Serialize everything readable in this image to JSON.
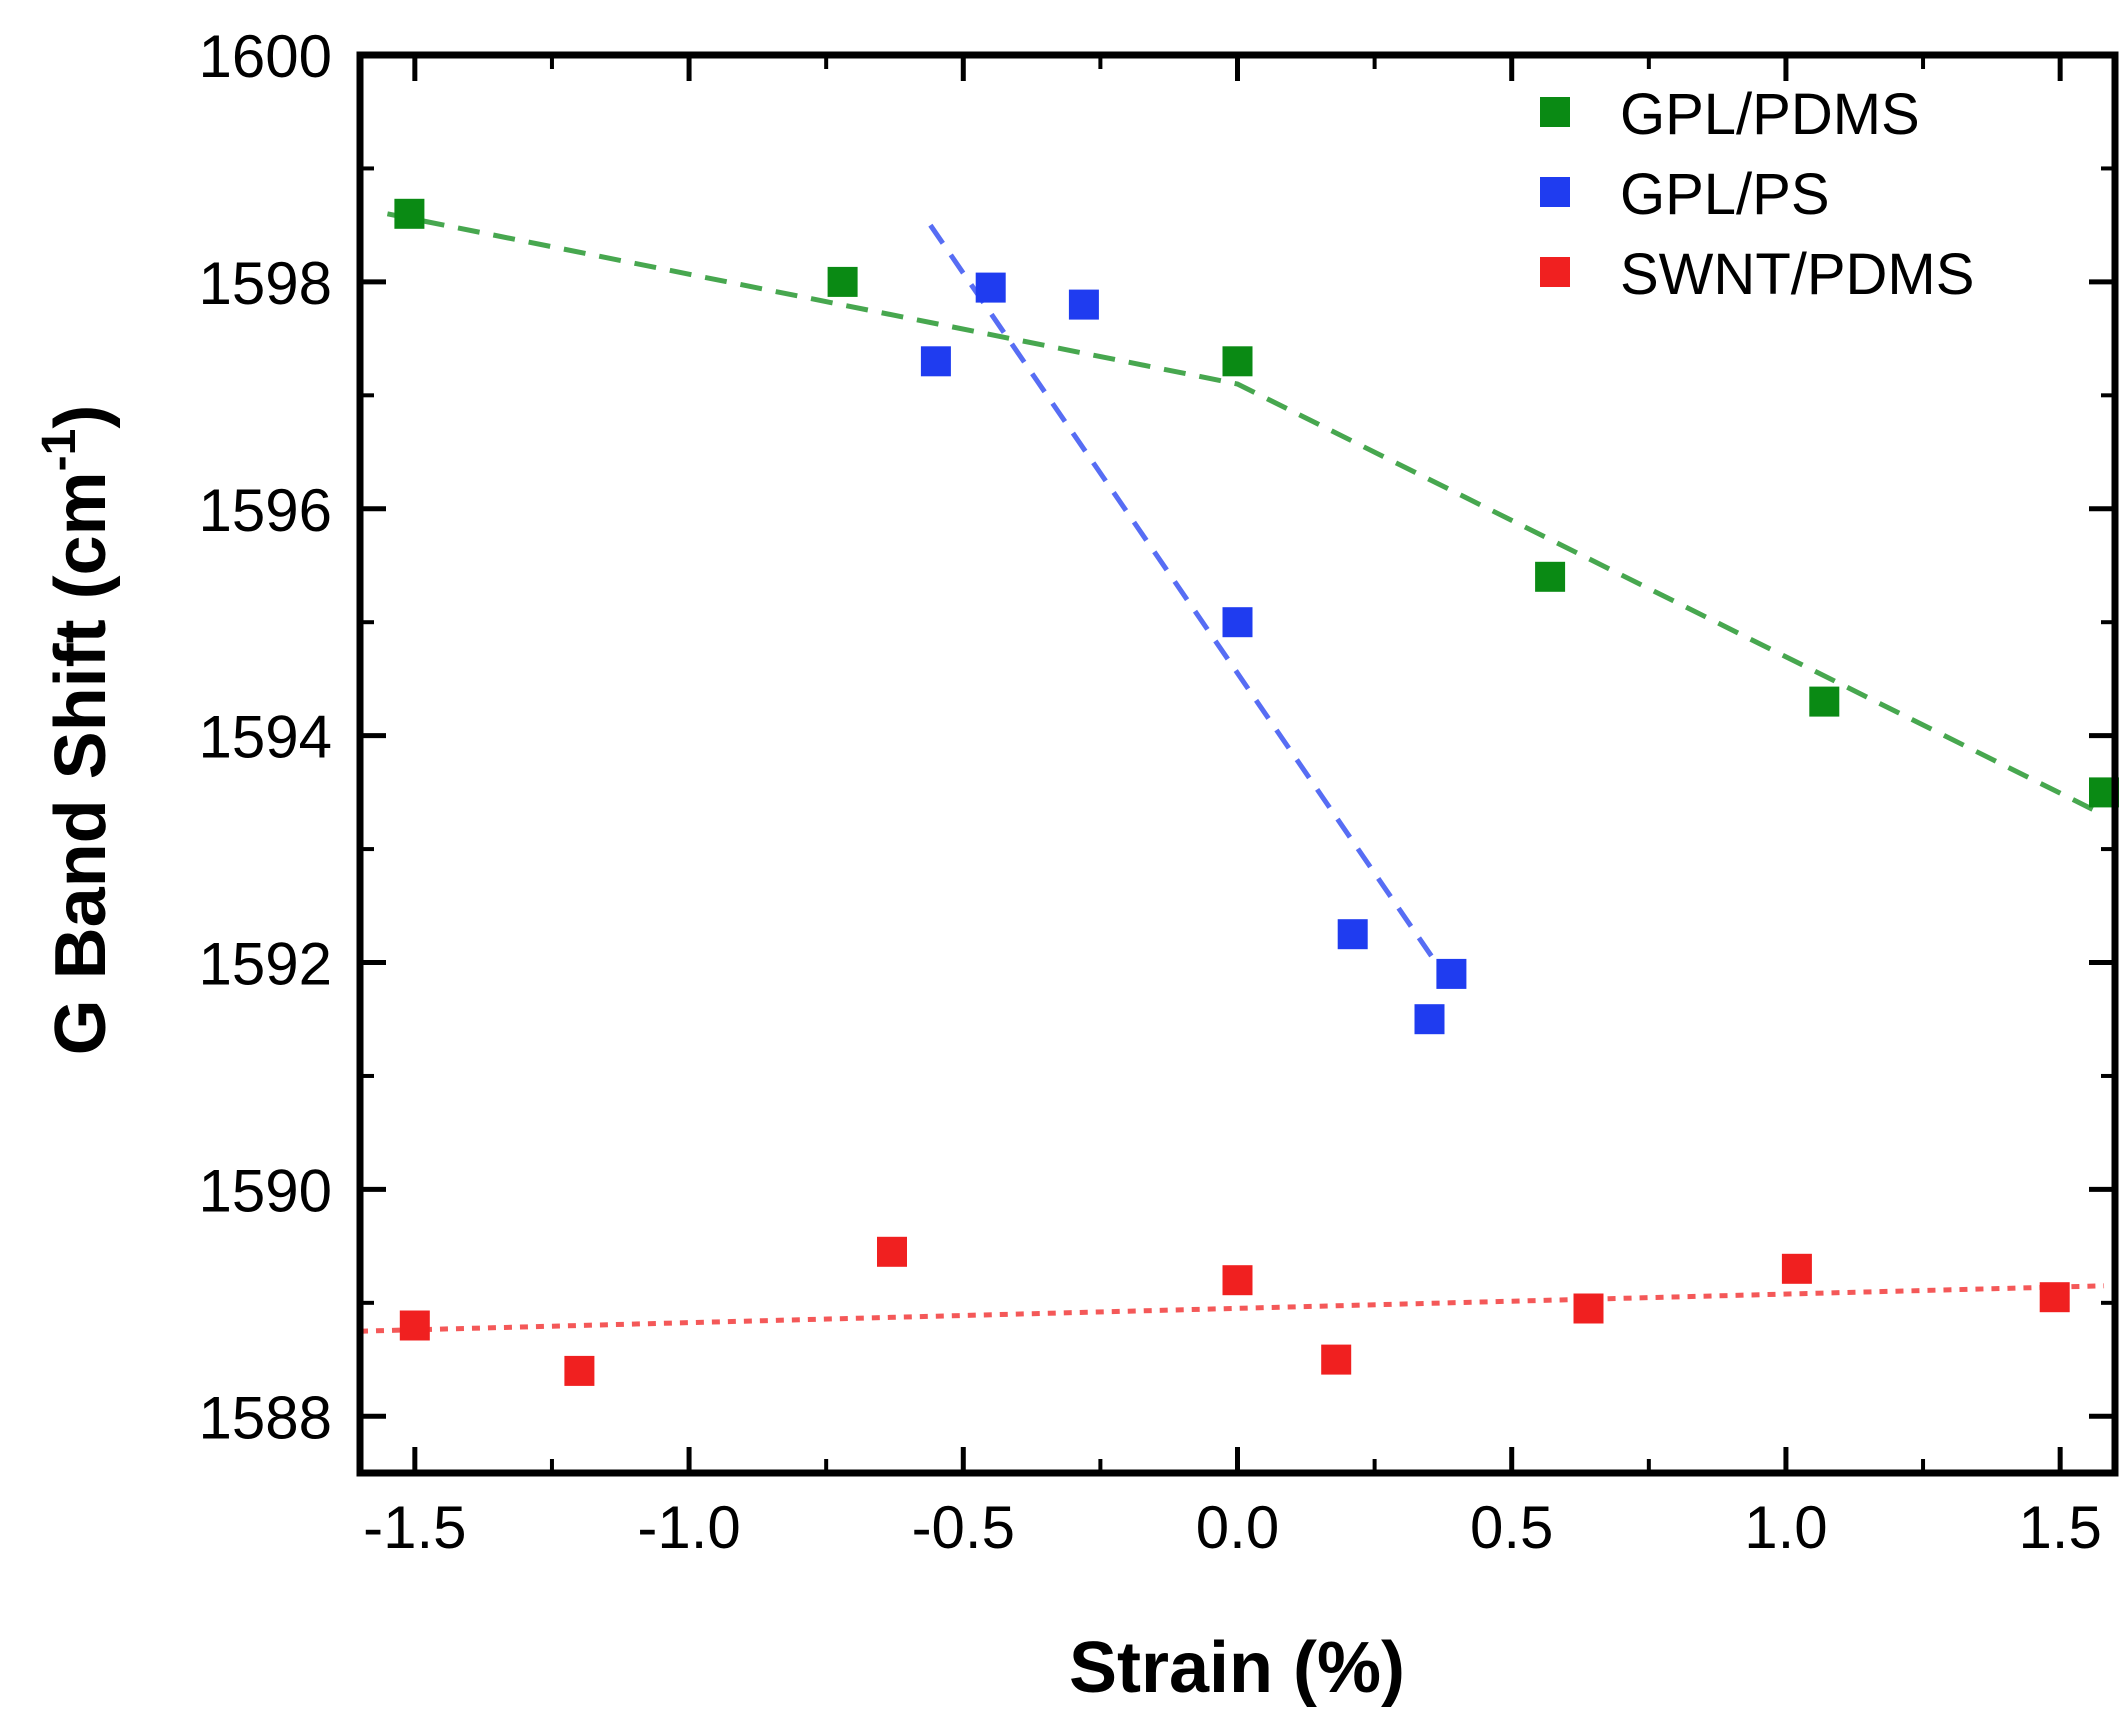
{
  "chart_data": {
    "type": "scatter",
    "xlabel": "Strain (%)",
    "ylabel": "G Band Shift (cm",
    "ylabel_sup": "-1",
    "ylabel_close": ")",
    "xlim": [
      -1.6,
      1.6
    ],
    "ylim": [
      1587.5,
      1600
    ],
    "x_ticks": [
      -1.5,
      -1.0,
      -0.5,
      0.0,
      0.5,
      1.0,
      1.5
    ],
    "x_tick_labels": [
      "-1.5",
      "-1.0",
      "-0.5",
      "0.0",
      "0.5",
      "1.0",
      "1.5"
    ],
    "x_minor_ticks": [
      -1.25,
      -0.75,
      -0.25,
      0.25,
      0.75,
      1.25
    ],
    "y_ticks": [
      1588,
      1590,
      1592,
      1594,
      1596,
      1598,
      1600
    ],
    "y_tick_labels": [
      "1588",
      "1590",
      "1592",
      "1594",
      "1596",
      "1598",
      "1600"
    ],
    "y_minor_ticks": [
      1589,
      1591,
      1593,
      1595,
      1597,
      1599
    ],
    "grid": false,
    "legend_position": "top-right",
    "series": [
      {
        "name": "GPL/PDMS",
        "color": "#0a8a14",
        "x": [
          -1.51,
          -0.72,
          0.0,
          0.57,
          1.07,
          1.58
        ],
        "y": [
          1598.6,
          1598.0,
          1597.3,
          1595.4,
          1594.3,
          1593.5
        ],
        "fit_line": [
          [
            -1.55,
            1598.6
          ],
          [
            0.0,
            1597.1
          ],
          [
            1.58,
            1593.3
          ]
        ],
        "fit_style": "dashed"
      },
      {
        "name": "GPL/PS",
        "color": "#1f3cf0",
        "x": [
          -0.55,
          -0.45,
          -0.28,
          0.0,
          0.21,
          0.35,
          0.39
        ],
        "y": [
          1597.3,
          1597.95,
          1597.8,
          1595.0,
          1592.25,
          1591.5,
          1591.9
        ],
        "fit_line": [
          [
            -0.56,
            1598.5
          ],
          [
            0.39,
            1591.8
          ]
        ],
        "fit_style": "dashed"
      },
      {
        "name": "SWNT/PDMS",
        "color": "#f02020",
        "x": [
          -1.5,
          -1.2,
          -0.63,
          0.0,
          0.18,
          0.64,
          1.02,
          1.49
        ],
        "y": [
          1588.8,
          1588.4,
          1589.45,
          1589.2,
          1588.5,
          1588.95,
          1589.3,
          1589.05
        ],
        "fit_line": [
          [
            -1.6,
            1588.75
          ],
          [
            1.58,
            1589.15
          ]
        ],
        "fit_style": "dotted"
      }
    ]
  }
}
